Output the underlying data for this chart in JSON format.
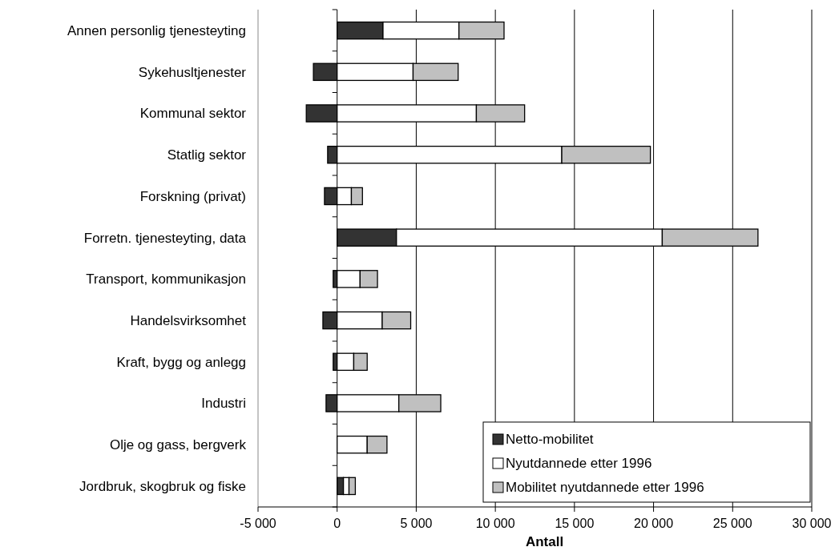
{
  "chart_data": {
    "type": "bar",
    "orientation": "horizontal",
    "stacked": true,
    "xlabel": "Antall",
    "categories": [
      "Annen personlig tjenesteyting",
      "Sykehusltjenester",
      "Kommunal sektor",
      "Statlig sektor",
      "Forskning (privat)",
      "Forretn. tjenesteyting, data",
      "Transport, kommunikasjon",
      "Handelsvirksomhet",
      "Kraft, bygg og anlegg",
      "Industri",
      "Olje og gass, bergverk",
      "Jordbruk, skogbruk og fiske"
    ],
    "series": [
      {
        "name": "Netto-mobilitet",
        "color": "#333333",
        "values": [
          2900,
          -1500,
          -1950,
          -600,
          -800,
          3750,
          -250,
          -900,
          -250,
          -700,
          0,
          400
        ]
      },
      {
        "name": "Nyutdannede etter 1996",
        "color": "#ffffff",
        "values": [
          4800,
          4800,
          8800,
          14200,
          900,
          16800,
          1450,
          2850,
          1050,
          3900,
          1900,
          350
        ]
      },
      {
        "name": "Mobilitet nyutdannede etter 1996",
        "color": "#c0c0c0",
        "values": [
          2850,
          2850,
          3050,
          5600,
          700,
          6050,
          1100,
          1800,
          850,
          2650,
          1250,
          400
        ]
      }
    ],
    "xlim": [
      -5000,
      30000
    ],
    "xticks": [
      {
        "value": -5000,
        "label": "-5 000"
      },
      0,
      {
        "value": 5000,
        "label": "5 000"
      },
      {
        "value": 10000,
        "label": "10 000"
      },
      {
        "value": 15000,
        "label": "15 000"
      },
      {
        "value": 20000,
        "label": "20 000"
      },
      {
        "value": 25000,
        "label": "25 000"
      },
      {
        "value": 30000,
        "label": "30 000"
      }
    ],
    "grid": "x",
    "legend": "bottom right"
  }
}
